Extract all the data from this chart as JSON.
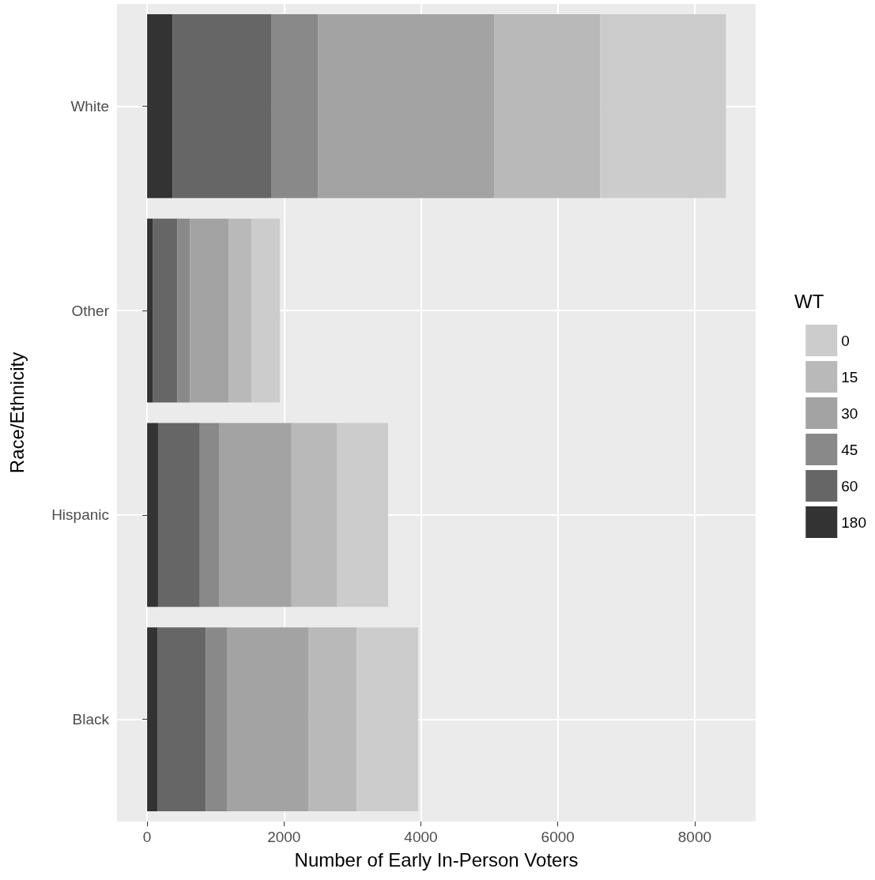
{
  "chart_data": {
    "type": "bar",
    "orientation": "horizontal",
    "stacked": true,
    "xlabel": "Number of Early In-Person Voters",
    "ylabel": "Race/Ethnicity",
    "legend_title": "WT",
    "categories": [
      "White",
      "Other",
      "Hispanic",
      "Black"
    ],
    "series": [
      {
        "name": "180",
        "color": "#333333",
        "values": [
          370,
          80,
          160,
          150
        ]
      },
      {
        "name": "60",
        "color": "#666666",
        "values": [
          1450,
          360,
          610,
          705
        ]
      },
      {
        "name": "45",
        "color": "#898989",
        "values": [
          680,
          185,
          280,
          310
        ]
      },
      {
        "name": "30",
        "color": "#a3a3a3",
        "values": [
          2575,
          565,
          1060,
          1190
        ]
      },
      {
        "name": "15",
        "color": "#b9b9b9",
        "values": [
          1545,
          335,
          660,
          705
        ]
      },
      {
        "name": "0",
        "color": "#cccccc",
        "values": [
          1835,
          415,
          750,
          900
        ]
      }
    ],
    "xlim": [
      -440,
      8890
    ],
    "xticks": [
      0,
      2000,
      4000,
      6000,
      8000
    ],
    "grid": true,
    "legend": "right"
  }
}
